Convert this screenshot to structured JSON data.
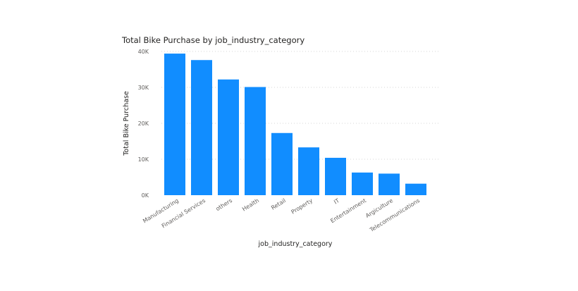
{
  "chart_data": {
    "type": "bar",
    "title": "Total Bike Purchase by job_industry_category",
    "xlabel": "job_industry_category",
    "ylabel": "Total Bike Purchase",
    "categories": [
      "Manufacturing",
      "Financial Services",
      "others",
      "Health",
      "Retail",
      "Property",
      "IT",
      "Entertainment",
      "Argiculture",
      "Telecommunications"
    ],
    "values": [
      39400,
      37600,
      32200,
      30100,
      17300,
      13300,
      10400,
      6300,
      6000,
      3200
    ],
    "ylim": [
      0,
      40000
    ],
    "yticks": [
      0,
      10000,
      20000,
      30000,
      40000
    ],
    "ytick_labels": [
      "0K",
      "10K",
      "20K",
      "30K",
      "40K"
    ],
    "grid": true,
    "bar_color": "#118dff",
    "legend": "none"
  }
}
